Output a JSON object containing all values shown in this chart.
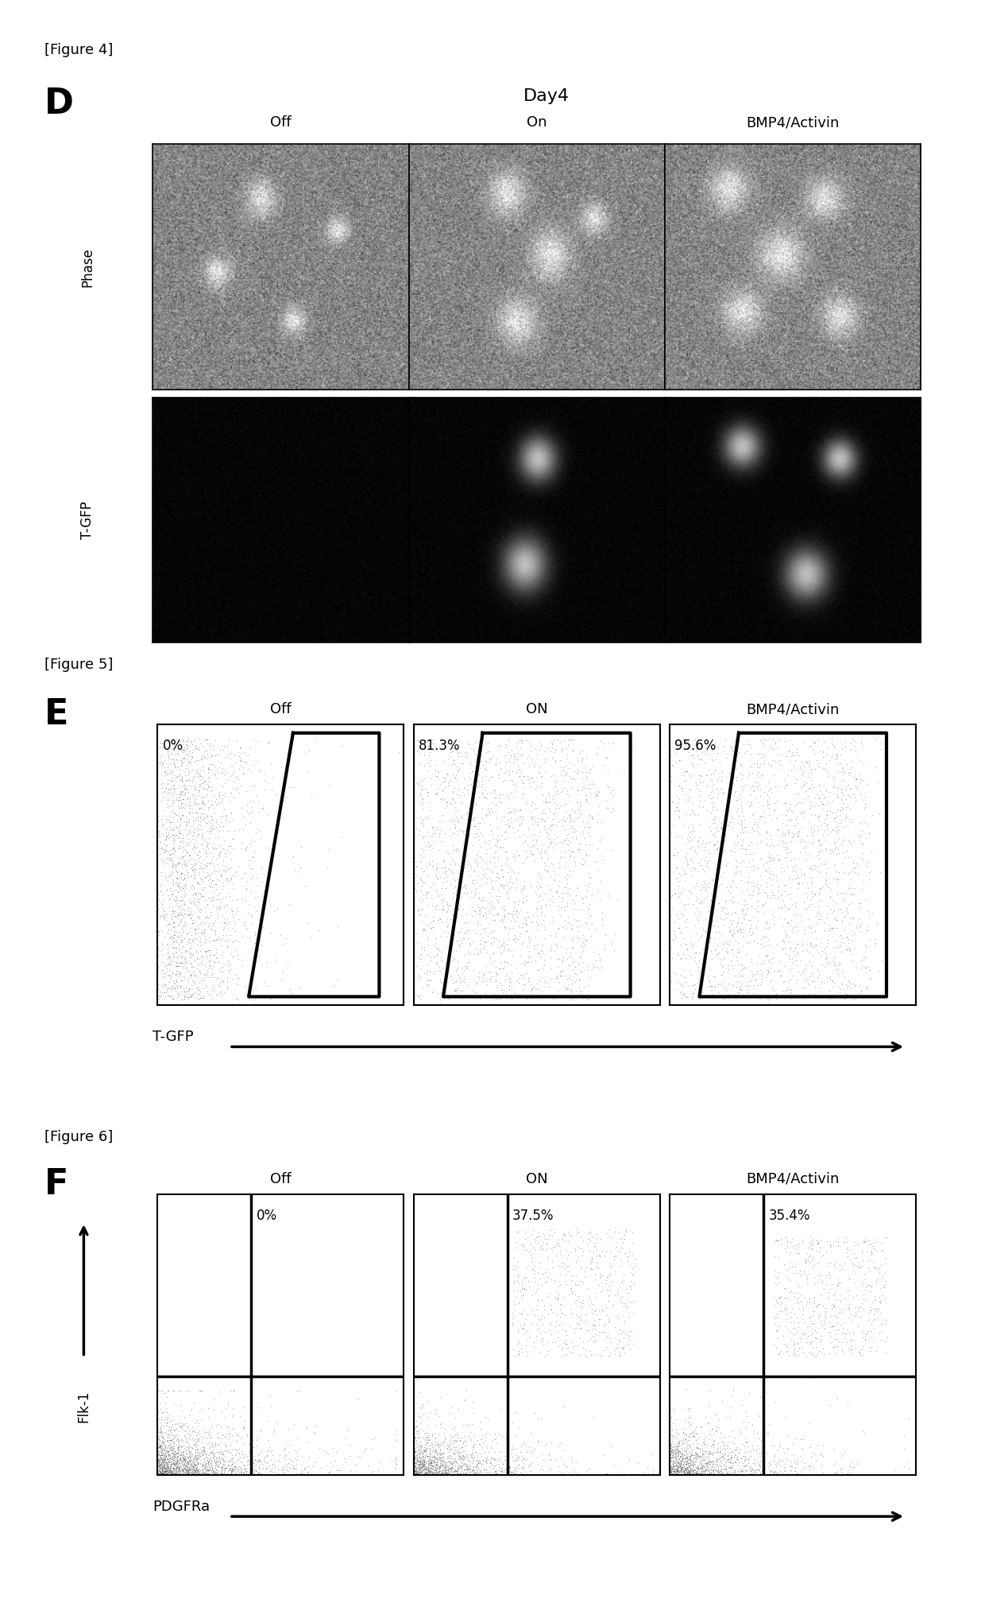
{
  "fig4_label": "[Figure 4]",
  "fig5_label": "[Figure 5]",
  "fig6_label": "[Figure 6]",
  "panel_D_label": "D",
  "panel_E_label": "E",
  "panel_F_label": "F",
  "day4_title": "Day4",
  "col_labels_D": [
    "Off",
    "On",
    "BMP4/Activin"
  ],
  "col_labels_E": [
    "Off",
    "ON",
    "BMP4/Activin"
  ],
  "col_labels_F": [
    "Off",
    "ON",
    "BMP4/Activin"
  ],
  "row_labels_D": [
    "Phase",
    "T-GFP"
  ],
  "E_percentages": [
    "0%",
    "81.3%",
    "95.6%"
  ],
  "F_percentages": [
    "0%",
    "37.5%",
    "35.4%"
  ],
  "E_xlabel": "T-GFP",
  "F_xlabel": "PDGFRa",
  "F_ylabel": "Flk-1",
  "bg_white": "#ffffff",
  "text_color": "#000000",
  "phase_bg": 0.52,
  "phase_noise": 0.09,
  "phase_blob_brightness": 0.88,
  "tgfp_blob_brightness": 0.72
}
